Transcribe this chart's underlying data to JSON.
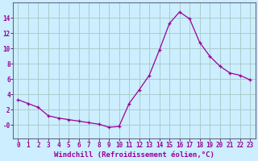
{
  "x": [
    0,
    1,
    2,
    3,
    4,
    5,
    6,
    7,
    8,
    9,
    10,
    11,
    12,
    13,
    14,
    15,
    16,
    17,
    18,
    19,
    20,
    21,
    22,
    23
  ],
  "y": [
    3.3,
    2.8,
    2.3,
    1.2,
    0.9,
    0.7,
    0.5,
    0.3,
    0.1,
    -0.3,
    -0.2,
    2.8,
    4.6,
    6.5,
    9.8,
    13.3,
    14.8,
    13.9,
    10.8,
    9.0,
    7.7,
    6.8,
    6.5,
    5.9
  ],
  "line_color": "#990099",
  "marker": "+",
  "bg_color": "#cceeff",
  "grid_color": "#aacccc",
  "xlabel": "Windchill (Refroidissement éolien,°C)",
  "xlabel_fontsize": 6.5,
  "tick_fontsize": 5.5,
  "xlim": [
    -0.5,
    23.5
  ],
  "ylim": [
    -1.8,
    16.0
  ],
  "yticks": [
    0,
    2,
    4,
    6,
    8,
    10,
    12,
    14
  ],
  "ytick_labels": [
    "-0",
    "2",
    "4",
    "6",
    "8",
    "10",
    "12",
    "14"
  ]
}
